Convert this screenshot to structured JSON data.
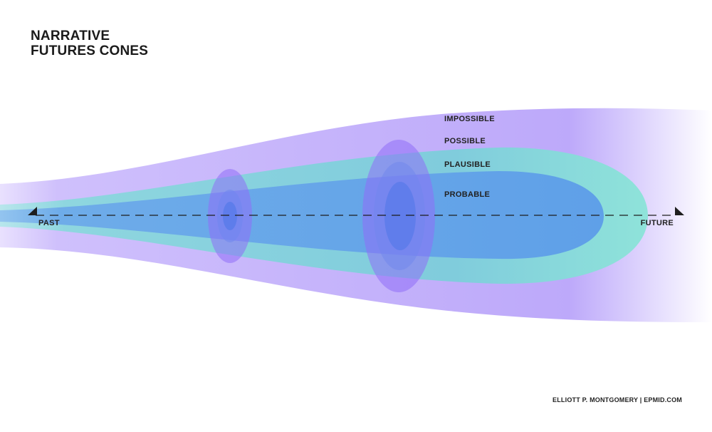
{
  "title": {
    "line1": "NARRATIVE",
    "line2": "FUTURES CONES"
  },
  "cones": [
    {
      "label": "IMPOSSIBLE",
      "color": "#b9a6f9"
    },
    {
      "label": "POSSIBLE",
      "color": "#c4b2fb"
    },
    {
      "label": "PLAUSIBLE",
      "color": "#7ecfd8"
    },
    {
      "label": "PROBABLE",
      "color": "#63a3e8"
    }
  ],
  "axis": {
    "start_label": "PAST",
    "end_label": "FUTURE"
  },
  "credit": "ELLIOTT P. MONTGOMERY  |  EPMID.COM"
}
